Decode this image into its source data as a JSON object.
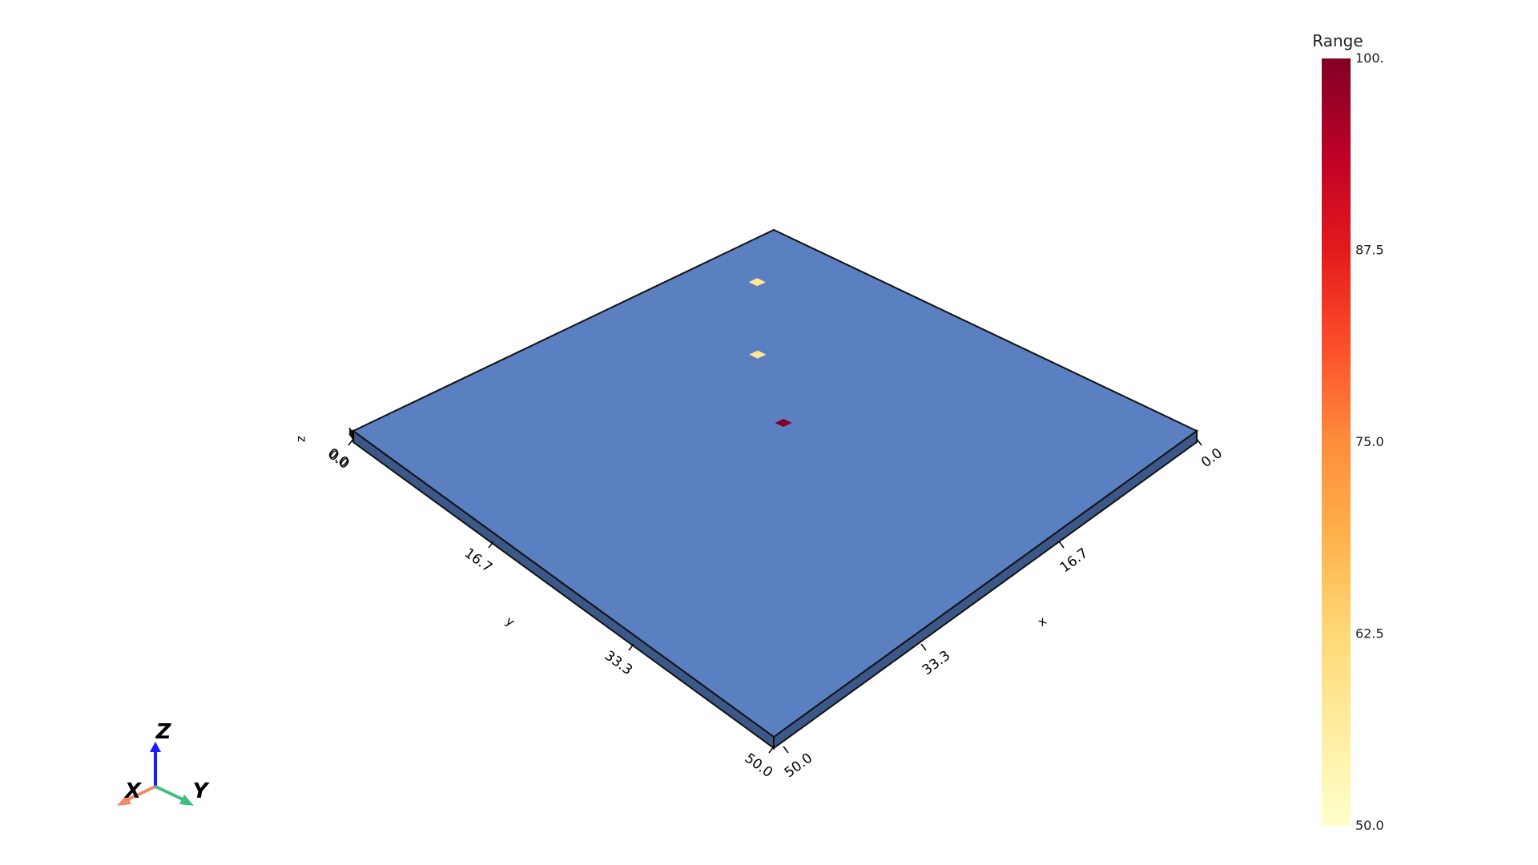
{
  "scene": {
    "background_color": "#ffffff",
    "slab": {
      "top_color": "#5b80c1",
      "side_color": "#3b5888",
      "edge_color": "#111111",
      "z_range": [
        0.0,
        0.0
      ]
    },
    "cells": [
      {
        "x": 5.5,
        "y": 7.5,
        "value": 58
      },
      {
        "x": 14.5,
        "y": 16.5,
        "value": 58
      },
      {
        "x": 24.5,
        "y": 23.5,
        "value": 100
      }
    ]
  },
  "axes": {
    "x": {
      "label": "x",
      "ticks": [
        "0.0",
        "16.7",
        "33.3",
        "50.0"
      ],
      "range": [
        0.0,
        50.0
      ]
    },
    "y": {
      "label": "y",
      "ticks": [
        "0.0",
        "16.7",
        "33.3",
        "50.0"
      ],
      "range": [
        0.0,
        50.0
      ]
    },
    "z": {
      "label": "z",
      "ticks": [
        "0.0"
      ]
    }
  },
  "colorbar": {
    "title": "Range",
    "min": 50.0,
    "max": 100.0,
    "ticks": [
      "100.",
      "87.5",
      "75.0",
      "62.5",
      "50.0"
    ],
    "colormap": "YlOrRd",
    "stops": [
      "#ffffcc",
      "#ffeda0",
      "#fed976",
      "#feb24c",
      "#fd8d3c",
      "#fc4e2a",
      "#e31a1c",
      "#bd0026",
      "#800026"
    ]
  },
  "orientation_widget": {
    "x_label": "X",
    "y_label": "Y",
    "z_label": "Z",
    "x_color": "#f08a6c",
    "y_color": "#3fbf7f",
    "z_color": "#1a1aff"
  }
}
